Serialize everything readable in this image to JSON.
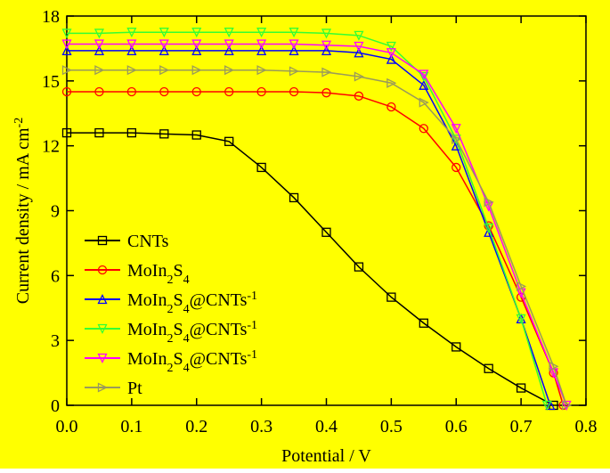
{
  "chart_data": {
    "type": "line",
    "xlabel": "Potential / V",
    "ylabel": "Current density / mA cm-2",
    "xlim": [
      0,
      0.8
    ],
    "ylim": [
      0,
      18
    ],
    "xticks": [
      {
        "value": 0,
        "label": "0.0"
      },
      0.1,
      0.2,
      0.3,
      0.4,
      0.5,
      0.6,
      0.7,
      0.8
    ],
    "yticks": [
      0,
      3,
      6,
      9,
      12,
      15,
      18
    ],
    "background": "#ffff00",
    "series": [
      {
        "name": "CNTs",
        "color": "#000000",
        "marker": "square",
        "x": [
          0,
          0.05,
          0.1,
          0.15,
          0.2,
          0.25,
          0.3,
          0.35,
          0.4,
          0.45,
          0.5,
          0.55,
          0.6,
          0.65,
          0.7,
          0.75
        ],
        "values": [
          12.6,
          12.6,
          12.6,
          12.55,
          12.5,
          12.2,
          11.0,
          9.6,
          8.0,
          6.4,
          5.0,
          3.8,
          2.7,
          1.7,
          0.8,
          0
        ]
      },
      {
        "name": "MoIn2S4",
        "color": "#ff0000",
        "marker": "circle",
        "x": [
          0,
          0.05,
          0.1,
          0.15,
          0.2,
          0.25,
          0.3,
          0.35,
          0.4,
          0.45,
          0.5,
          0.55,
          0.6,
          0.65,
          0.7,
          0.75,
          0.765
        ],
        "values": [
          14.5,
          14.5,
          14.5,
          14.5,
          14.5,
          14.5,
          14.5,
          14.5,
          14.45,
          14.3,
          13.8,
          12.8,
          11.0,
          8.3,
          5.0,
          1.5,
          0
        ]
      },
      {
        "name": "MoIn2S4@CNTs-1",
        "color": "#0000ff",
        "marker": "triangle-up",
        "x": [
          0,
          0.05,
          0.1,
          0.15,
          0.2,
          0.25,
          0.3,
          0.35,
          0.4,
          0.45,
          0.5,
          0.55,
          0.6,
          0.65,
          0.7,
          0.745
        ],
        "values": [
          16.4,
          16.4,
          16.4,
          16.4,
          16.4,
          16.4,
          16.4,
          16.4,
          16.4,
          16.3,
          16.0,
          14.8,
          12.0,
          8.0,
          4.0,
          0
        ]
      },
      {
        "name": "MoIn2S4@CNTs-1",
        "color": "#33ff33",
        "marker": "triangle-down",
        "x": [
          0,
          0.05,
          0.1,
          0.15,
          0.2,
          0.25,
          0.3,
          0.35,
          0.4,
          0.45,
          0.5,
          0.55,
          0.6,
          0.65,
          0.7,
          0.74
        ],
        "values": [
          17.2,
          17.2,
          17.25,
          17.25,
          17.25,
          17.25,
          17.25,
          17.25,
          17.2,
          17.1,
          16.6,
          15.2,
          12.3,
          8.2,
          4.0,
          0
        ]
      },
      {
        "name": "MoIn2S4@CNTs-1",
        "color": "#ff00ff",
        "marker": "triangle-down",
        "x": [
          0,
          0.05,
          0.1,
          0.15,
          0.2,
          0.25,
          0.3,
          0.35,
          0.4,
          0.45,
          0.5,
          0.55,
          0.6,
          0.65,
          0.7,
          0.75,
          0.77
        ],
        "values": [
          16.7,
          16.7,
          16.7,
          16.7,
          16.7,
          16.7,
          16.7,
          16.7,
          16.65,
          16.6,
          16.3,
          15.3,
          12.8,
          9.2,
          5.2,
          1.5,
          0
        ]
      },
      {
        "name": "Pt",
        "color": "#9a9a5a",
        "marker": "triangle-right",
        "x": [
          0,
          0.05,
          0.1,
          0.15,
          0.2,
          0.25,
          0.3,
          0.35,
          0.4,
          0.45,
          0.5,
          0.55,
          0.6,
          0.65,
          0.7,
          0.75,
          0.77
        ],
        "values": [
          15.5,
          15.5,
          15.5,
          15.5,
          15.5,
          15.5,
          15.5,
          15.45,
          15.4,
          15.2,
          14.9,
          14.0,
          12.3,
          9.4,
          5.5,
          1.8,
          0
        ]
      }
    ]
  }
}
